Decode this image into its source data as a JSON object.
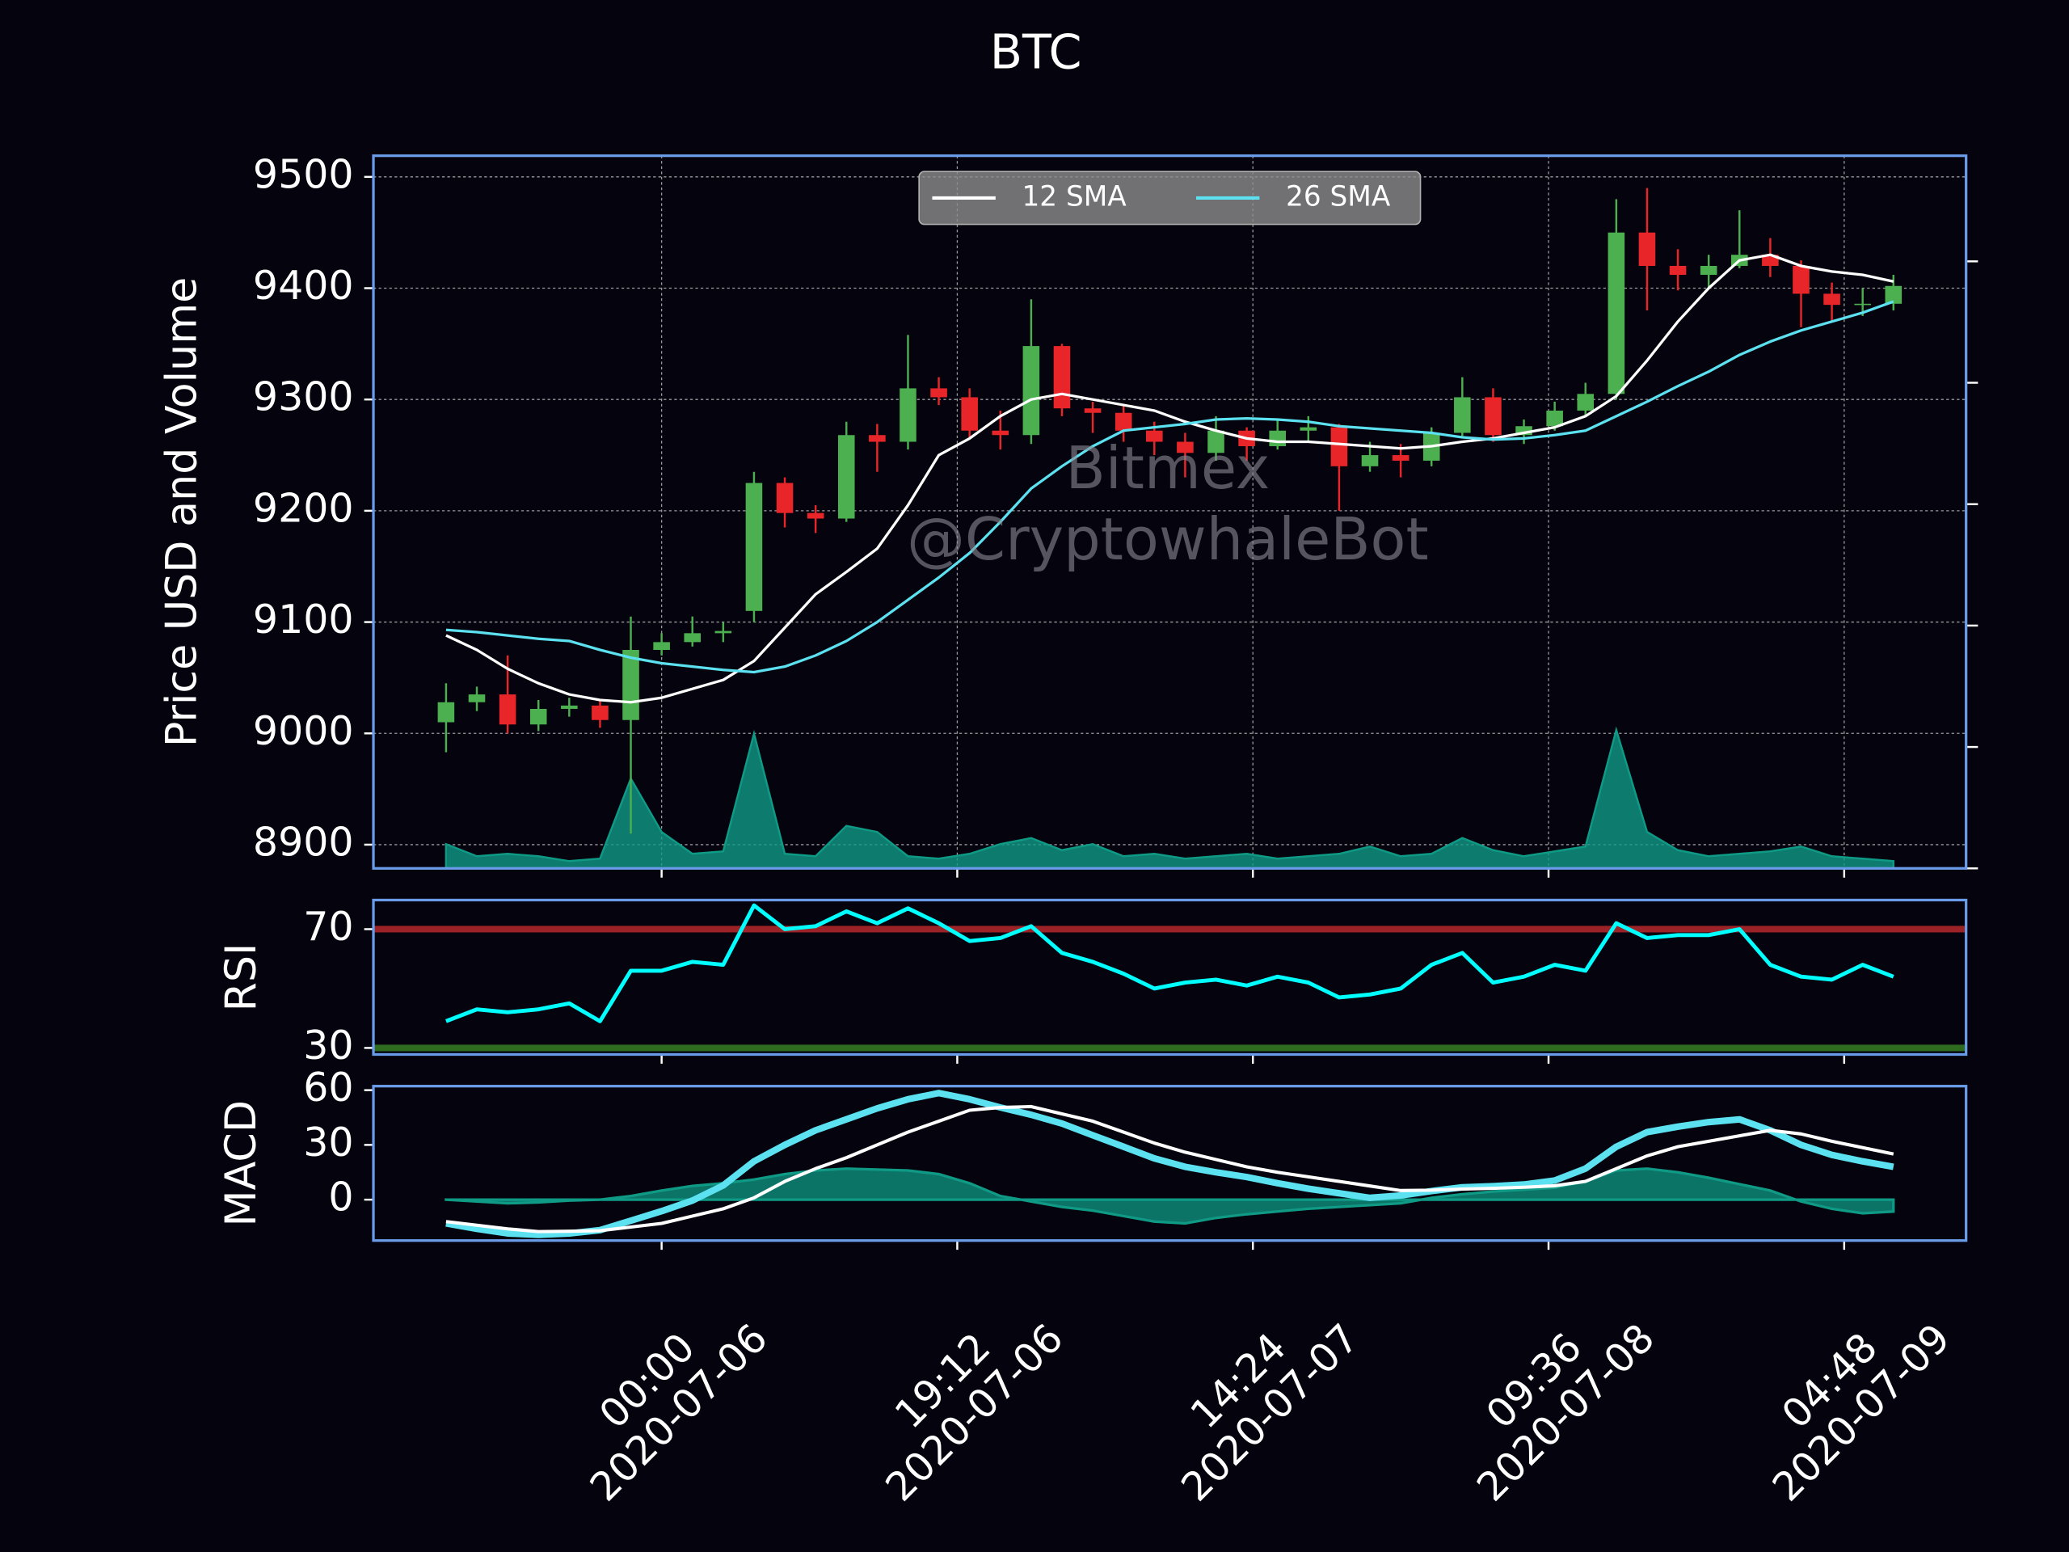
{
  "chart_data": [
    {
      "type": "candlestick",
      "title": "BTC",
      "y_label": "Price USD and Volume",
      "x": [
        "2020-07-05 10:00",
        "2020-07-05 12:00",
        "2020-07-05 14:00",
        "2020-07-05 16:00",
        "2020-07-05 18:00",
        "2020-07-05 20:00",
        "2020-07-05 22:00",
        "2020-07-06 00:00",
        "2020-07-06 02:00",
        "2020-07-06 04:00",
        "2020-07-06 06:00",
        "2020-07-06 08:00",
        "2020-07-06 10:00",
        "2020-07-06 12:00",
        "2020-07-06 14:00",
        "2020-07-06 16:00",
        "2020-07-06 18:00",
        "2020-07-06 20:00",
        "2020-07-06 22:00",
        "2020-07-07 00:00",
        "2020-07-07 02:00",
        "2020-07-07 04:00",
        "2020-07-07 06:00",
        "2020-07-07 08:00",
        "2020-07-07 10:00",
        "2020-07-07 12:00",
        "2020-07-07 14:00",
        "2020-07-07 16:00",
        "2020-07-07 18:00",
        "2020-07-07 20:00",
        "2020-07-07 22:00",
        "2020-07-08 00:00",
        "2020-07-08 02:00",
        "2020-07-08 04:00",
        "2020-07-08 06:00",
        "2020-07-08 08:00",
        "2020-07-08 10:00",
        "2020-07-08 12:00",
        "2020-07-08 14:00",
        "2020-07-08 16:00",
        "2020-07-08 18:00",
        "2020-07-08 20:00",
        "2020-07-08 22:00",
        "2020-07-09 00:00",
        "2020-07-09 02:00",
        "2020-07-09 04:00",
        "2020-07-09 06:00",
        "2020-07-09 08:00"
      ],
      "open": [
        9010,
        9028,
        9035,
        9008,
        9022,
        9025,
        9012,
        9075,
        9082,
        9090,
        9110,
        9225,
        9198,
        9193,
        9268,
        9262,
        9310,
        9302,
        9272,
        9268,
        9348,
        9292,
        9288,
        9272,
        9262,
        9252,
        9272,
        9258,
        9272,
        9275,
        9240,
        9250,
        9245,
        9270,
        9302,
        9268,
        9276,
        9290,
        9305,
        9450,
        9420,
        9412,
        9420,
        9430,
        9420,
        9395,
        9385,
        9386
      ],
      "high": [
        9045,
        9042,
        9070,
        9030,
        9032,
        9030,
        9105,
        9090,
        9105,
        9100,
        9235,
        9230,
        9205,
        9280,
        9278,
        9358,
        9320,
        9310,
        9290,
        9390,
        9350,
        9298,
        9295,
        9280,
        9270,
        9285,
        9275,
        9282,
        9285,
        9278,
        9262,
        9260,
        9275,
        9320,
        9310,
        9282,
        9298,
        9315,
        9480,
        9490,
        9435,
        9430,
        9470,
        9445,
        9425,
        9405,
        9400,
        9412
      ],
      "low": [
        8983,
        9020,
        9000,
        9002,
        9015,
        9005,
        8910,
        9070,
        9078,
        9082,
        9100,
        9185,
        9180,
        9190,
        9235,
        9255,
        9295,
        9265,
        9255,
        9260,
        9285,
        9270,
        9262,
        9250,
        9230,
        9245,
        9245,
        9255,
        9262,
        9200,
        9235,
        9230,
        9240,
        9265,
        9262,
        9260,
        9272,
        9285,
        9300,
        9380,
        9398,
        9400,
        9418,
        9410,
        9365,
        9370,
        9375,
        9380
      ],
      "close": [
        9028,
        9035,
        9008,
        9022,
        9025,
        9012,
        9075,
        9082,
        9090,
        9092,
        9225,
        9198,
        9193,
        9268,
        9262,
        9310,
        9302,
        9272,
        9268,
        9348,
        9292,
        9288,
        9272,
        9262,
        9252,
        9272,
        9258,
        9272,
        9275,
        9240,
        9250,
        9245,
        9270,
        9302,
        9268,
        9276,
        9290,
        9305,
        9450,
        9420,
        9412,
        9420,
        9430,
        9420,
        9395,
        9385,
        9386,
        9402
      ],
      "up_color": "#4caf50",
      "down_color": "#e8262a",
      "series": [
        {
          "name": "12 SMA",
          "color": "#ffffff",
          "values": [
            9088,
            9075,
            9058,
            9045,
            9035,
            9030,
            9028,
            9032,
            9040,
            9048,
            9065,
            9095,
            9125,
            9145,
            9166,
            9205,
            9250,
            9265,
            9285,
            9300,
            9305,
            9300,
            9295,
            9290,
            9280,
            9272,
            9265,
            9262,
            9262,
            9260,
            9258,
            9256,
            9258,
            9262,
            9265,
            9270,
            9275,
            9285,
            9303,
            9335,
            9370,
            9400,
            9425,
            9430,
            9420,
            9415,
            9412,
            9406
          ]
        },
        {
          "name": "26 SMA",
          "color": "#5ce1f0",
          "values": [
            9093,
            9091,
            9088,
            9085,
            9083,
            9075,
            9068,
            9063,
            9060,
            9057,
            9055,
            9060,
            9070,
            9083,
            9100,
            9120,
            9140,
            9162,
            9190,
            9220,
            9240,
            9258,
            9272,
            9275,
            9278,
            9282,
            9283,
            9282,
            9280,
            9276,
            9274,
            9272,
            9270,
            9266,
            9264,
            9265,
            9268,
            9272,
            9285,
            9298,
            9312,
            9325,
            9340,
            9352,
            9362,
            9370,
            9378,
            9388
          ]
        }
      ],
      "volume": {
        "axis": "y2",
        "color": "#0f9a86",
        "values": [
          20,
          10,
          12,
          10,
          6,
          8,
          74,
          30,
          12,
          14,
          111,
          12,
          10,
          35,
          30,
          10,
          8,
          12,
          20,
          25,
          15,
          20,
          10,
          12,
          8,
          10,
          12,
          8,
          10,
          12,
          18,
          10,
          12,
          25,
          15,
          10,
          14,
          18,
          114,
          30,
          15,
          10,
          12,
          14,
          18,
          10,
          8,
          6
        ]
      },
      "xlim": [
        "2020-07-05 05:17",
        "2020-07-09 12:43"
      ],
      "xticks": [
        {
          "value": "2020-07-06 00:00",
          "label": [
            "00:00",
            "2020-07-06"
          ]
        },
        {
          "value": "2020-07-06 19:12",
          "label": [
            "19:12",
            "2020-07-06"
          ]
        },
        {
          "value": "2020-07-07 14:24",
          "label": [
            "14:24",
            "2020-07-07"
          ]
        },
        {
          "value": "2020-07-08 09:36",
          "label": [
            "09:36",
            "2020-07-08"
          ]
        },
        {
          "value": "2020-07-09 04:48",
          "label": [
            "04:48",
            "2020-07-09"
          ]
        }
      ],
      "ylim": [
        8878.7,
        9519
      ],
      "yticks": [
        8900,
        9000,
        9100,
        9200,
        9300,
        9400,
        9500
      ],
      "y2lim": [
        0,
        587
      ],
      "y2ticks": [
        0,
        100,
        200,
        300,
        400,
        500
      ],
      "grid": true,
      "legend": "upper center",
      "annotations": [
        "Bitmex",
        "@CryptowhaleBot"
      ]
    },
    {
      "type": "line",
      "y_label": "RSI",
      "series": [
        {
          "color": "#00ffff",
          "values": [
            39,
            43,
            42,
            43,
            45,
            39,
            56,
            56,
            59,
            58,
            78,
            70,
            71,
            76,
            72,
            77,
            72,
            66,
            67,
            71,
            62,
            59,
            55,
            50,
            52,
            53,
            51,
            54,
            52,
            47,
            48,
            50,
            58,
            62,
            52,
            54,
            58,
            56,
            72,
            67,
            68,
            68,
            70,
            58,
            54,
            53,
            58,
            54
          ]
        }
      ],
      "hlines": [
        {
          "value": 70,
          "color": "#9b2226"
        },
        {
          "value": 30,
          "color": "#2e6b1f"
        }
      ],
      "ylim": [
        27.8,
        79.8
      ],
      "yticks": [
        30,
        70
      ]
    },
    {
      "type": "line",
      "y_label": "MACD",
      "series": [
        {
          "color": "#5ce1f0",
          "width": 5,
          "values": [
            -13,
            -16,
            -18.5,
            -19.3,
            -18.5,
            -16.7,
            -11.5,
            -6.3,
            -0.5,
            7.8,
            21,
            30,
            38,
            44,
            50,
            55,
            58.4,
            55,
            50.5,
            46.5,
            41.7,
            35.3,
            29,
            22.6,
            18,
            15,
            12.4,
            9,
            6,
            3.5,
            1,
            2.3,
            4.7,
            6.8,
            7.4,
            8.3,
            10.5,
            17,
            29,
            37,
            40,
            42.5,
            44,
            38,
            30,
            24.5,
            21,
            18
          ]
        },
        {
          "color": "#ffffff",
          "width": 2.5,
          "values": [
            -12,
            -14,
            -16,
            -17.5,
            -17.3,
            -17,
            -15,
            -13,
            -9,
            -5,
            1,
            10,
            17,
            23,
            30,
            37,
            43,
            49,
            50.5,
            51,
            47,
            43,
            37,
            31,
            26,
            22,
            18,
            15,
            12.5,
            10,
            7.5,
            5,
            5.2,
            5.8,
            6.2,
            6.8,
            7.6,
            10,
            17,
            24,
            29,
            32,
            35,
            38,
            36,
            32,
            28.5,
            25
          ]
        }
      ],
      "histogram": {
        "color": "#0f9a86",
        "values": [
          0,
          -1,
          -2,
          -1.5,
          -0.5,
          0,
          2,
          5,
          7.5,
          9,
          11,
          14,
          16,
          17,
          16.5,
          16,
          14,
          9,
          2,
          -1,
          -4,
          -6,
          -9,
          -12,
          -13,
          -10,
          -8,
          -6.5,
          -5,
          -4,
          -3,
          -2,
          1,
          3,
          4.5,
          5.5,
          6.5,
          10,
          16,
          17,
          15,
          12,
          8.5,
          5,
          -1,
          -5,
          -7.5,
          -6.5
        ]
      },
      "ylim": [
        -22.4,
        62.2
      ],
      "yticks": [
        0,
        30,
        60
      ]
    }
  ]
}
